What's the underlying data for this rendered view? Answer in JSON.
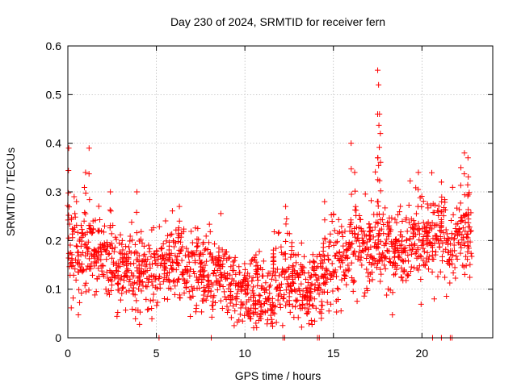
{
  "chart_data": {
    "type": "scatter",
    "title": "Day 230 of 2024, SRMTID for receiver fern",
    "xlabel": "GPS time / hours",
    "ylabel": "SRMTID / TECUs",
    "xlim": [
      0,
      24
    ],
    "ylim": [
      0,
      0.6
    ],
    "x_ticks": [
      0,
      5,
      10,
      15,
      20
    ],
    "x_tick_labels": [
      "0",
      "5",
      "10",
      "15",
      "20"
    ],
    "y_ticks": [
      0,
      0.1,
      0.2,
      0.3,
      0.4,
      0.5,
      0.6
    ],
    "y_tick_labels": [
      "0",
      "0.1",
      "0.2",
      "0.3",
      "0.4",
      "0.5",
      "0.6"
    ],
    "grid": true,
    "marker": "+",
    "series": [
      {
        "name": "SRMTID",
        "color": "#ff0000",
        "trend": {
          "x": [
            0,
            0.5,
            1,
            1.5,
            2,
            2.5,
            3,
            3.5,
            4,
            4.5,
            5,
            5.5,
            6,
            6.5,
            7,
            7.5,
            8,
            8.5,
            9,
            9.5,
            10,
            10.5,
            11,
            11.5,
            12,
            12.5,
            13,
            13.5,
            14,
            14.5,
            15,
            15.5,
            16,
            16.5,
            17,
            17.5,
            18,
            18.5,
            19,
            19.5,
            20,
            20.5,
            21,
            21.5,
            22,
            22.5,
            22.8
          ],
          "y": [
            0.21,
            0.17,
            0.17,
            0.19,
            0.16,
            0.15,
            0.14,
            0.14,
            0.13,
            0.13,
            0.14,
            0.15,
            0.15,
            0.15,
            0.14,
            0.13,
            0.13,
            0.12,
            0.11,
            0.1,
            0.09,
            0.08,
            0.08,
            0.09,
            0.12,
            0.13,
            0.11,
            0.09,
            0.1,
            0.13,
            0.16,
            0.17,
            0.19,
            0.18,
            0.18,
            0.19,
            0.17,
            0.19,
            0.2,
            0.2,
            0.2,
            0.2,
            0.2,
            0.19,
            0.2,
            0.21,
            0.22
          ]
        },
        "spread": 0.035,
        "peaks": [
          {
            "x": 0.05,
            "y": 0.39
          },
          {
            "x": 1.2,
            "y": 0.39
          },
          {
            "x": 1.0,
            "y": 0.34
          },
          {
            "x": 2.4,
            "y": 0.3
          },
          {
            "x": 3.9,
            "y": 0.3
          },
          {
            "x": 6.3,
            "y": 0.27
          },
          {
            "x": 12.3,
            "y": 0.27
          },
          {
            "x": 14.5,
            "y": 0.28
          },
          {
            "x": 16.0,
            "y": 0.4
          },
          {
            "x": 16.2,
            "y": 0.34
          },
          {
            "x": 17.5,
            "y": 0.55
          },
          {
            "x": 17.55,
            "y": 0.52
          },
          {
            "x": 17.6,
            "y": 0.46
          },
          {
            "x": 17.65,
            "y": 0.42
          },
          {
            "x": 17.5,
            "y": 0.37
          },
          {
            "x": 19.8,
            "y": 0.34
          },
          {
            "x": 21.1,
            "y": 0.32
          },
          {
            "x": 22.4,
            "y": 0.38
          },
          {
            "x": 22.6,
            "y": 0.37
          },
          {
            "x": 22.2,
            "y": 0.35
          }
        ],
        "zeros_x": [
          5.15,
          8.1,
          12.15,
          12.25,
          14.1,
          14.2,
          20.6,
          21.1,
          21.6,
          21.7
        ]
      }
    ]
  }
}
